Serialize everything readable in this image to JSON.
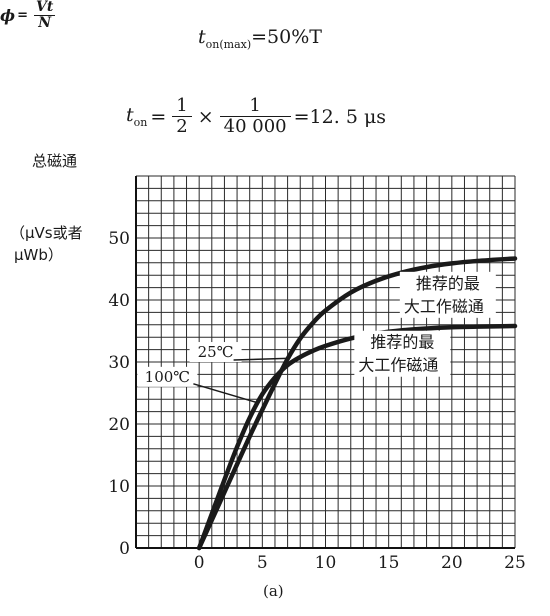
{
  "equations": {
    "eq1": {
      "lhs": "t",
      "lhs_sub": "on(max)",
      "rhs": "=50%T"
    },
    "eq2": {
      "lhs": "t",
      "lhs_sub": "on",
      "eq": "=",
      "f1_num": "1",
      "f1_den": "2",
      "times": "×",
      "f2_num": "1",
      "f2_den": "40 000",
      "result": "=12. 5 μs"
    }
  },
  "ylabel": {
    "title": "总磁通",
    "symbol": "ϕ",
    "eq": "=",
    "num": "Vt",
    "den": "N",
    "unit_line1": "（μVs或者",
    "unit_line2": "μWb）"
  },
  "caption": "(a)",
  "chart_data": {
    "type": "line",
    "xlim": [
      -5,
      25
    ],
    "ylim": [
      0,
      60
    ],
    "xticks": [
      0,
      5,
      10,
      15,
      20,
      25
    ],
    "yticks": [
      0,
      10,
      20,
      30,
      40,
      50
    ],
    "grid": true,
    "grid_step_x": 1,
    "grid_step_y": 2,
    "series": [
      {
        "name": "25℃",
        "color": "#1a1a1a",
        "x": [
          0,
          1,
          2,
          3,
          4,
          5,
          6,
          7,
          8,
          9,
          10,
          12,
          14,
          16,
          18,
          20,
          22,
          25
        ],
        "y": [
          0,
          4.5,
          9,
          13.5,
          18,
          22.3,
          26.5,
          30.5,
          33.8,
          36.3,
          38.3,
          41.2,
          43.1,
          44.4,
          45.3,
          45.9,
          46.3,
          46.7
        ]
      },
      {
        "name": "100℃",
        "color": "#1a1a1a",
        "x": [
          0,
          1,
          2,
          3,
          4,
          5,
          6,
          7,
          8,
          9,
          10,
          12,
          14,
          16,
          18,
          20,
          22,
          25
        ],
        "y": [
          0,
          5.5,
          11,
          16.3,
          21,
          24.8,
          27.5,
          29.5,
          30.8,
          31.8,
          32.6,
          33.8,
          34.6,
          35.1,
          35.4,
          35.6,
          35.7,
          35.8
        ]
      }
    ],
    "annotations": [
      {
        "text_line1": "推荐的最",
        "text_line2": "大工作磁通",
        "target_series": "25℃"
      },
      {
        "text_line1": "推荐的最",
        "text_line2": "大工作磁通",
        "target_series": "100℃"
      }
    ]
  }
}
